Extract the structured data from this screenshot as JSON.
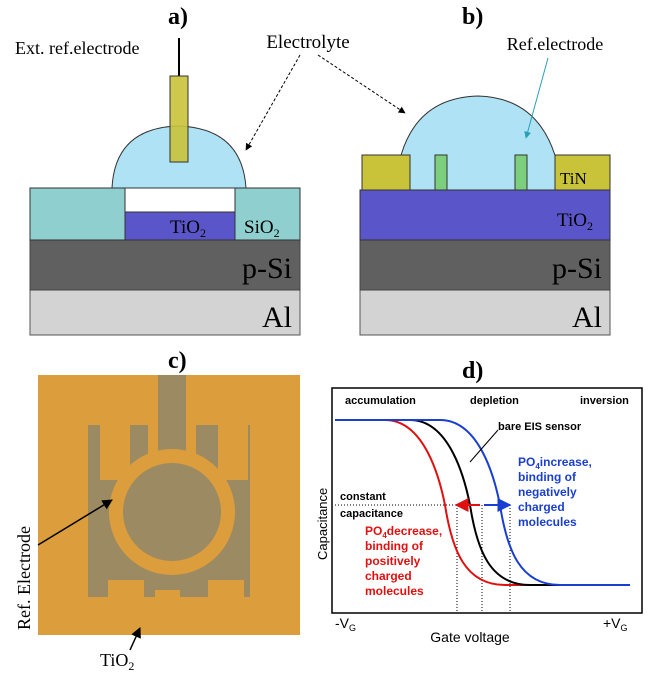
{
  "electrolyte": "Electrolyte",
  "panel_a": {
    "label": "a)",
    "ext_electrode": "Ext. ref.electrode",
    "tio2": {
      "base": "TiO",
      "sub": "2"
    },
    "sio2": {
      "base": "SiO",
      "sub": "2"
    },
    "substrate": "p-Si",
    "back_contact": "Al"
  },
  "panel_b": {
    "label": "b)",
    "ref_electrode": "Ref.electrode",
    "tin": "TiN",
    "tio2": {
      "base": "TiO",
      "sub": "2"
    },
    "substrate": "p-Si",
    "back_contact": "Al"
  },
  "panel_c": {
    "label": "c)",
    "ref_electrode": "Ref. Electrode",
    "tio2": {
      "base": "TiO",
      "sub": "2"
    }
  },
  "panel_d": {
    "label": "d)",
    "regions": [
      "accumulation",
      "depletion",
      "inversion"
    ],
    "bare_sensor": "bare EIS sensor",
    "increase": {
      "species": {
        "base": "PO",
        "sub": "4"
      },
      "lines": [
        "increase,",
        "binding of",
        "negatively",
        "charged",
        "molecules"
      ]
    },
    "decrease": {
      "species": {
        "base": "PO",
        "sub": "4"
      },
      "lines": [
        "decrease,",
        "binding of",
        "positively",
        "charged",
        "molecules"
      ]
    },
    "constant": [
      "constant",
      "capacitance"
    ],
    "y_axis": "Capacitance",
    "x_axis": "Gate voltage",
    "x_min": {
      "base": "-V",
      "sub": "G"
    },
    "x_max": {
      "base": "+V",
      "sub": "G"
    }
  }
}
